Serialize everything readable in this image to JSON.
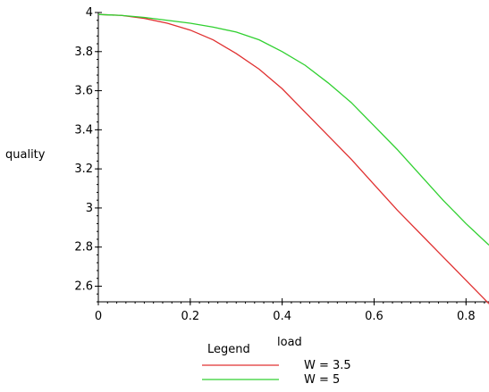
{
  "chart_data": {
    "type": "line",
    "title": "",
    "xlabel": "load",
    "ylabel": "quality",
    "xlim": [
      0,
      0.85
    ],
    "ylim": [
      2.52,
      4.0
    ],
    "x_ticks": [
      0,
      0.2,
      0.4,
      0.6,
      0.8
    ],
    "x_tick_labels": [
      "0",
      "0.2",
      "0.4",
      "0.6",
      "0.8"
    ],
    "y_ticks": [
      2.6,
      2.8,
      3.0,
      3.2,
      3.4,
      3.6,
      3.8,
      4.0
    ],
    "y_tick_labels": [
      "2.6",
      "2.8",
      "3",
      "3.2",
      "3.4",
      "3.6",
      "3.8",
      "4"
    ],
    "grid": false,
    "legend": {
      "title": "Legend",
      "placement": "bottom"
    },
    "series": [
      {
        "name": "W = 3.5",
        "color": "#e03030",
        "x": [
          0,
          0.05,
          0.1,
          0.15,
          0.2,
          0.25,
          0.3,
          0.35,
          0.4,
          0.45,
          0.5,
          0.55,
          0.6,
          0.65,
          0.7,
          0.75,
          0.8,
          0.85
        ],
        "y": [
          3.99,
          3.985,
          3.97,
          3.945,
          3.91,
          3.86,
          3.79,
          3.71,
          3.61,
          3.49,
          3.37,
          3.25,
          3.12,
          2.99,
          2.87,
          2.75,
          2.63,
          2.51
        ]
      },
      {
        "name": "W = 5",
        "color": "#30d030",
        "x": [
          0,
          0.05,
          0.1,
          0.15,
          0.2,
          0.25,
          0.3,
          0.35,
          0.4,
          0.45,
          0.5,
          0.55,
          0.6,
          0.65,
          0.7,
          0.75,
          0.8,
          0.85
        ],
        "y": [
          3.99,
          3.985,
          3.975,
          3.96,
          3.945,
          3.925,
          3.9,
          3.86,
          3.8,
          3.73,
          3.64,
          3.54,
          3.42,
          3.3,
          3.17,
          3.04,
          2.92,
          2.81
        ]
      }
    ]
  }
}
